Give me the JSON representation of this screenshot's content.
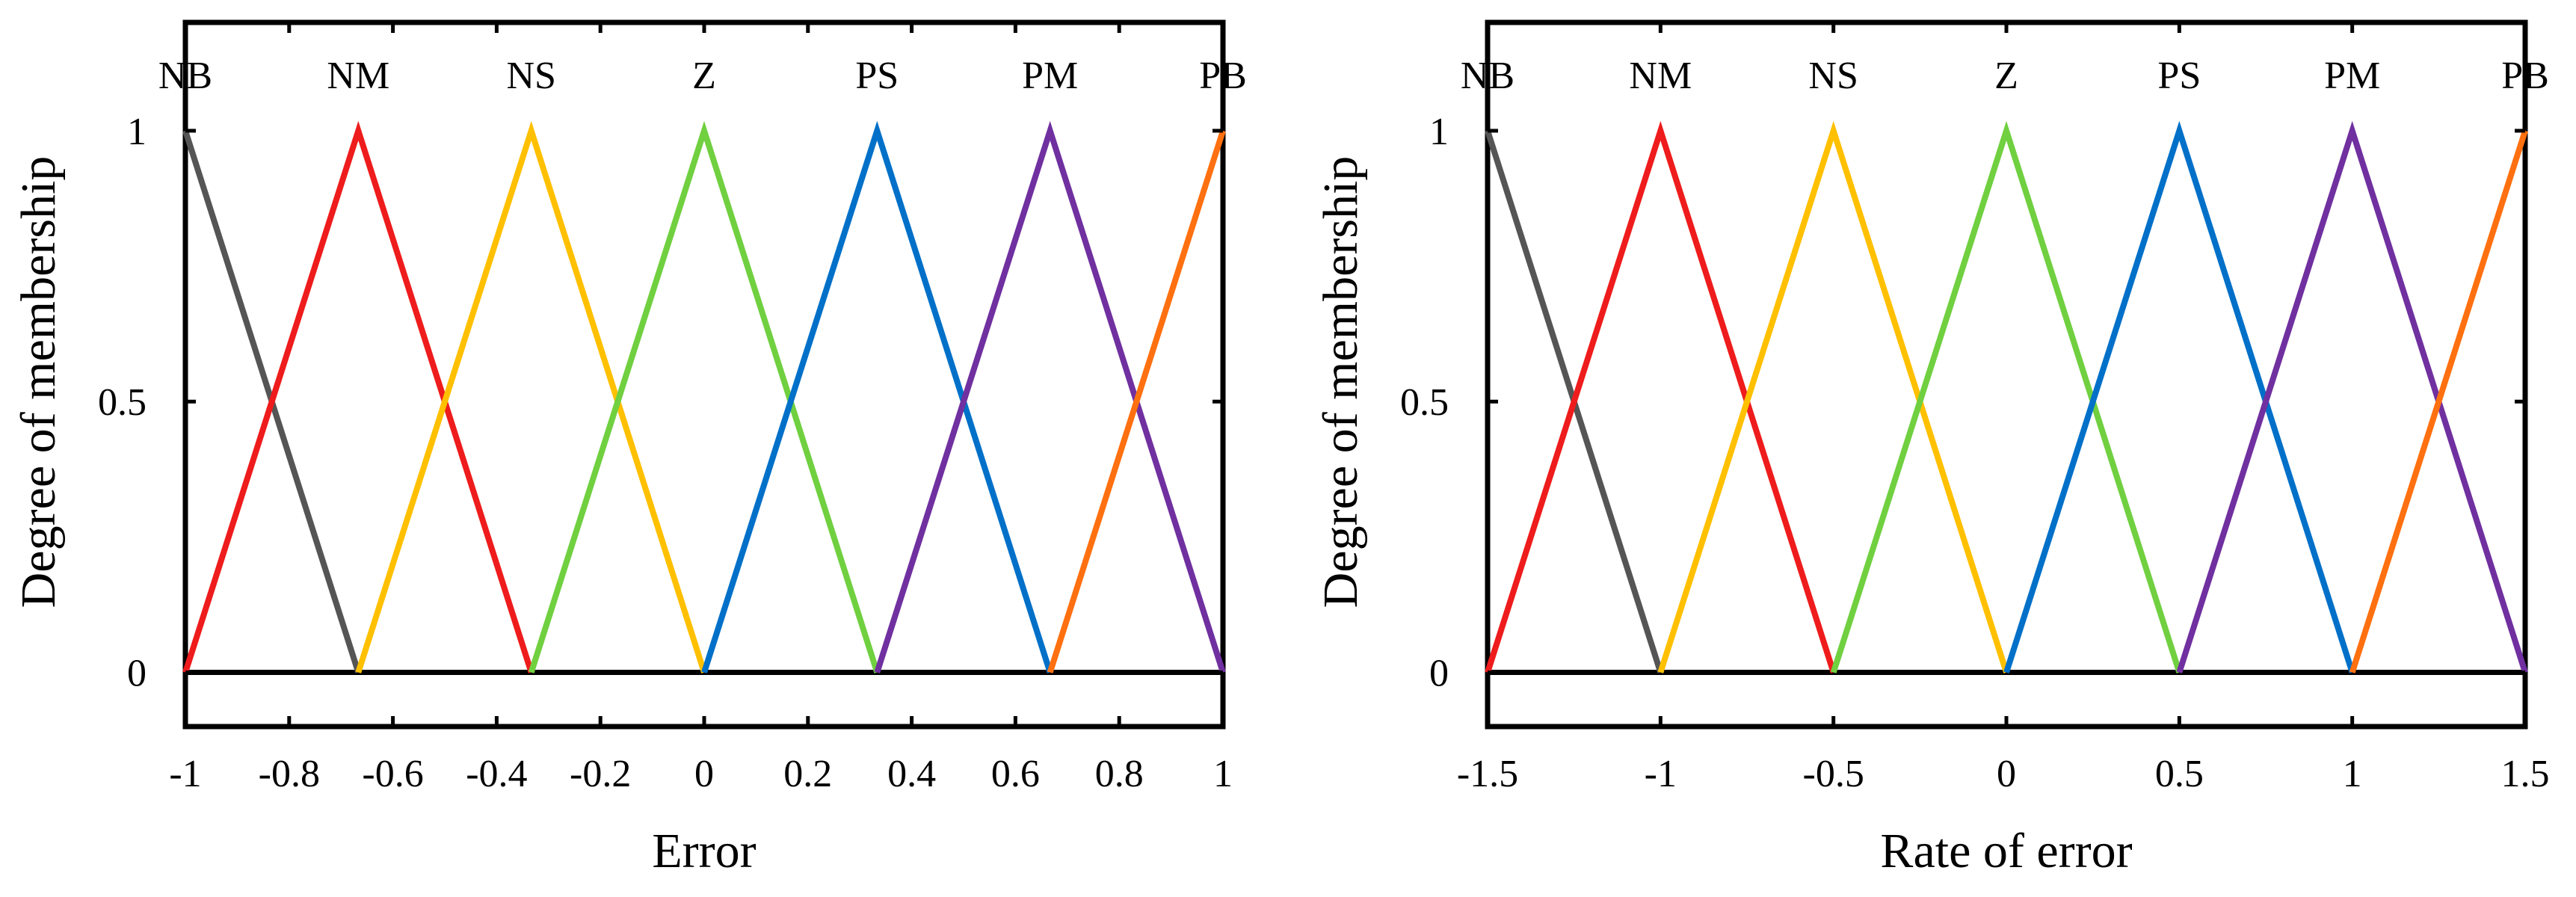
{
  "charts": [
    {
      "type": "line",
      "title": "",
      "xlabel": "Error",
      "ylabel": "Degree  of  membership",
      "xlim": [
        -1,
        1
      ],
      "ylim": [
        -0.1,
        1.2
      ],
      "xticks": [
        -1,
        -0.8,
        -0.6,
        -0.4,
        -0.2,
        0,
        0.2,
        0.4,
        0.6,
        0.8,
        1
      ],
      "xtick_labels": [
        "-1",
        "-0.8",
        "-0.6",
        "-0.4",
        "-0.2",
        "0",
        "0.2",
        "0.4",
        "0.6",
        "0.8",
        "1"
      ],
      "yticks": [
        0,
        0.5,
        1
      ],
      "ytick_labels": [
        "0",
        "0.5",
        "1"
      ],
      "series": [
        {
          "name": "NB",
          "color": "#555555",
          "x": [
            -1,
            -0.6667
          ],
          "y": [
            1,
            0
          ]
        },
        {
          "name": "NM",
          "color": "#ee1c1c",
          "x": [
            -1,
            -0.6667,
            -0.3333
          ],
          "y": [
            0,
            1,
            0
          ]
        },
        {
          "name": "NS",
          "color": "#ffc000",
          "x": [
            -0.6667,
            -0.3333,
            0
          ],
          "y": [
            0,
            1,
            0
          ]
        },
        {
          "name": "Z",
          "color": "#70d040",
          "x": [
            -0.3333,
            0,
            0.3333
          ],
          "y": [
            0,
            1,
            0
          ]
        },
        {
          "name": "PS",
          "color": "#0070c8",
          "x": [
            0,
            0.3333,
            0.6667
          ],
          "y": [
            0,
            1,
            0
          ]
        },
        {
          "name": "PM",
          "color": "#7030a0",
          "x": [
            0.3333,
            0.6667,
            1
          ],
          "y": [
            0,
            1,
            0
          ]
        },
        {
          "name": "PB",
          "color": "#ff7010",
          "x": [
            0.6667,
            1
          ],
          "y": [
            0,
            1
          ]
        }
      ]
    },
    {
      "type": "line",
      "title": "",
      "xlabel": "Rate of error",
      "ylabel": "Degree  of  membership",
      "xlim": [
        -1.5,
        1.5
      ],
      "ylim": [
        -0.1,
        1.2
      ],
      "xticks": [
        -1.5,
        -1,
        -0.5,
        0,
        0.5,
        1,
        1.5
      ],
      "xtick_labels": [
        "-1.5",
        "-1",
        "-0.5",
        "0",
        "0.5",
        "1",
        "1.5"
      ],
      "yticks": [
        0,
        0.5,
        1
      ],
      "ytick_labels": [
        "0",
        "0.5",
        "1"
      ],
      "series": [
        {
          "name": "NB",
          "color": "#555555",
          "x": [
            -1.5,
            -1
          ],
          "y": [
            1,
            0
          ]
        },
        {
          "name": "NM",
          "color": "#ee1c1c",
          "x": [
            -1.5,
            -1,
            -0.5
          ],
          "y": [
            0,
            1,
            0
          ]
        },
        {
          "name": "NS",
          "color": "#ffc000",
          "x": [
            -1,
            -0.5,
            0
          ],
          "y": [
            0,
            1,
            0
          ]
        },
        {
          "name": "Z",
          "color": "#70d040",
          "x": [
            -0.5,
            0,
            0.5
          ],
          "y": [
            0,
            1,
            0
          ]
        },
        {
          "name": "PS",
          "color": "#0070c8",
          "x": [
            0,
            0.5,
            1
          ],
          "y": [
            0,
            1,
            0
          ]
        },
        {
          "name": "PM",
          "color": "#7030a0",
          "x": [
            0.5,
            1,
            1.5
          ],
          "y": [
            0,
            1,
            0
          ]
        },
        {
          "name": "PB",
          "color": "#ff7010",
          "x": [
            1,
            1.5
          ],
          "y": [
            0,
            1
          ]
        }
      ]
    }
  ]
}
